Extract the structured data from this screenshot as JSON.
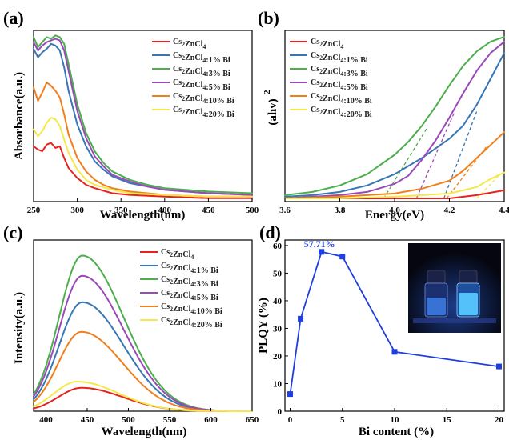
{
  "series_colors": [
    "#e8231e",
    "#3777b5",
    "#4cae4c",
    "#9a4ab8",
    "#f07f1c",
    "#f4e84a"
  ],
  "chart_data": [
    {
      "panel": "(a)",
      "type": "line",
      "xlabel": "Wavelength(nm)",
      "ylabel": "Absorbance(a.u.)",
      "xlim": [
        250,
        500
      ],
      "xticks": [
        250,
        300,
        350,
        400,
        450,
        500
      ],
      "yticks": [],
      "ylim": [
        0,
        1
      ],
      "legend_placement": "top-right",
      "series": [
        {
          "name": "Cs2ZnCl4",
          "x": [
            250,
            255,
            260,
            265,
            270,
            275,
            280,
            285,
            290,
            300,
            310,
            320,
            340,
            360,
            400,
            450,
            500
          ],
          "y": [
            0.33,
            0.31,
            0.3,
            0.34,
            0.35,
            0.32,
            0.33,
            0.26,
            0.2,
            0.14,
            0.1,
            0.08,
            0.05,
            0.04,
            0.03,
            0.02,
            0.02
          ]
        },
        {
          "name": "Cs2ZnCl4:1% Bi",
          "x": [
            250,
            255,
            260,
            265,
            270,
            275,
            280,
            285,
            290,
            295,
            300,
            310,
            320,
            330,
            340,
            360,
            380,
            400,
            450,
            500
          ],
          "y": [
            0.91,
            0.86,
            0.89,
            0.91,
            0.94,
            0.93,
            0.9,
            0.8,
            0.66,
            0.56,
            0.46,
            0.33,
            0.24,
            0.19,
            0.15,
            0.11,
            0.09,
            0.07,
            0.05,
            0.04
          ]
        },
        {
          "name": "Cs2ZnCl4:3% Bi",
          "x": [
            250,
            255,
            260,
            265,
            270,
            275,
            280,
            285,
            290,
            295,
            300,
            310,
            320,
            330,
            340,
            360,
            380,
            400,
            450,
            500
          ],
          "y": [
            0.98,
            0.92,
            0.95,
            0.98,
            0.97,
            0.99,
            0.98,
            0.94,
            0.82,
            0.7,
            0.58,
            0.41,
            0.3,
            0.23,
            0.18,
            0.13,
            0.1,
            0.08,
            0.06,
            0.05
          ]
        },
        {
          "name": "Cs2ZnCl4:5% Bi",
          "x": [
            250,
            255,
            260,
            265,
            270,
            275,
            280,
            285,
            290,
            295,
            300,
            310,
            320,
            330,
            340,
            360,
            380,
            400,
            450,
            500
          ],
          "y": [
            0.95,
            0.9,
            0.93,
            0.95,
            0.96,
            0.97,
            0.96,
            0.9,
            0.78,
            0.66,
            0.54,
            0.38,
            0.27,
            0.21,
            0.16,
            0.12,
            0.09,
            0.07,
            0.05,
            0.04
          ]
        },
        {
          "name": "Cs2ZnCl4:10% Bi",
          "x": [
            250,
            255,
            260,
            265,
            270,
            275,
            280,
            285,
            290,
            300,
            310,
            320,
            330,
            340,
            360,
            380,
            400,
            450,
            500
          ],
          "y": [
            0.68,
            0.6,
            0.65,
            0.71,
            0.69,
            0.66,
            0.62,
            0.52,
            0.4,
            0.26,
            0.18,
            0.13,
            0.1,
            0.08,
            0.06,
            0.05,
            0.04,
            0.03,
            0.03
          ]
        },
        {
          "name": "Cs2ZnCl4:20% Bi",
          "x": [
            250,
            255,
            260,
            265,
            270,
            275,
            280,
            285,
            290,
            300,
            310,
            320,
            340,
            360,
            400,
            450,
            500
          ],
          "y": [
            0.43,
            0.39,
            0.42,
            0.47,
            0.5,
            0.49,
            0.45,
            0.37,
            0.29,
            0.19,
            0.13,
            0.1,
            0.07,
            0.05,
            0.04,
            0.03,
            0.03
          ]
        }
      ]
    },
    {
      "panel": "(b)",
      "type": "line",
      "xlabel": "Energy(eV)",
      "ylabel": "(ahv)",
      "ylabel_sup": "2",
      "xlim": [
        3.6,
        4.4
      ],
      "xticks": [
        "3.6",
        "3.8",
        "4.0",
        "4.2",
        "4.4"
      ],
      "yticks": [],
      "ylim": [
        0,
        1
      ],
      "legend_placement": "top-left",
      "series": [
        {
          "name": "Cs2ZnCl4",
          "x": [
            3.6,
            3.8,
            4.0,
            4.2,
            4.3,
            4.4
          ],
          "y": [
            0.0,
            0.0,
            0.0,
            0.0,
            0.02,
            0.05
          ]
        },
        {
          "name": "Cs2ZnCl4:1% Bi",
          "x": [
            3.6,
            3.7,
            3.8,
            3.9,
            4.0,
            4.1,
            4.15,
            4.2,
            4.25,
            4.3,
            4.35,
            4.4
          ],
          "y": [
            0.01,
            0.02,
            0.04,
            0.08,
            0.15,
            0.25,
            0.31,
            0.37,
            0.45,
            0.58,
            0.74,
            0.9
          ]
        },
        {
          "name": "Cs2ZnCl4:3% Bi",
          "x": [
            3.6,
            3.7,
            3.8,
            3.9,
            4.0,
            4.05,
            4.1,
            4.15,
            4.2,
            4.25,
            4.3,
            4.35,
            4.4
          ],
          "y": [
            0.02,
            0.04,
            0.08,
            0.15,
            0.27,
            0.35,
            0.45,
            0.57,
            0.7,
            0.82,
            0.91,
            0.97,
            1.0
          ]
        },
        {
          "name": "Cs2ZnCl4:5% Bi",
          "x": [
            3.6,
            3.7,
            3.8,
            3.9,
            4.0,
            4.05,
            4.1,
            4.15,
            4.2,
            4.25,
            4.3,
            4.35,
            4.4
          ],
          "y": [
            0.0,
            0.01,
            0.02,
            0.04,
            0.09,
            0.14,
            0.24,
            0.36,
            0.5,
            0.65,
            0.79,
            0.9,
            0.97
          ]
        },
        {
          "name": "Cs2ZnCl4:10% Bi",
          "x": [
            3.6,
            3.8,
            4.0,
            4.1,
            4.2,
            4.25,
            4.3,
            4.35,
            4.4
          ],
          "y": [
            0.0,
            0.01,
            0.03,
            0.06,
            0.11,
            0.17,
            0.25,
            0.33,
            0.41
          ]
        },
        {
          "name": "Cs2ZnCl4:20% Bi",
          "x": [
            3.6,
            3.8,
            4.0,
            4.2,
            4.3,
            4.35,
            4.4
          ],
          "y": [
            0.0,
            0.0,
            0.01,
            0.03,
            0.07,
            0.12,
            0.16
          ]
        }
      ],
      "tangent_lines": [
        {
          "series": "Cs2ZnCl4:3% Bi",
          "from": [
            3.96,
            0.0
          ],
          "to": [
            4.12,
            0.44
          ]
        },
        {
          "series": "Cs2ZnCl4:5% Bi",
          "from": [
            4.08,
            0.0
          ],
          "to": [
            4.22,
            0.54
          ]
        },
        {
          "series": "Cs2ZnCl4:1% Bi",
          "from": [
            4.18,
            0.0
          ],
          "to": [
            4.3,
            0.54
          ]
        },
        {
          "series": "Cs2ZnCl4:10% Bi",
          "from": [
            4.19,
            0.0
          ],
          "to": [
            4.34,
            0.33
          ]
        },
        {
          "series": "Cs2ZnCl4:20% Bi",
          "from": [
            4.3,
            0.0
          ],
          "to": [
            4.38,
            0.14
          ]
        }
      ]
    },
    {
      "panel": "(c)",
      "type": "line",
      "xlabel": "Wavelength(nm)",
      "ylabel": "Intensity(a.u.)",
      "xlim": [
        385,
        650
      ],
      "xticks": [
        400,
        450,
        500,
        550,
        600,
        650
      ],
      "yticks": [],
      "ylim": [
        0,
        1
      ],
      "legend_placement": "top-right",
      "series": [
        {
          "name": "Cs2ZnCl4",
          "peak": 0.15,
          "center": 443
        },
        {
          "name": "Cs2ZnCl4:1% Bi",
          "peak": 0.7,
          "center": 444
        },
        {
          "name": "Cs2ZnCl4:3% Bi",
          "peak": 1.0,
          "center": 444
        },
        {
          "name": "Cs2ZnCl4:5% Bi",
          "peak": 0.87,
          "center": 444
        },
        {
          "name": "Cs2ZnCl4:10% Bi",
          "peak": 0.51,
          "center": 443
        },
        {
          "name": "Cs2ZnCl4:20% Bi",
          "peak": 0.19,
          "center": 438
        }
      ]
    },
    {
      "panel": "(d)",
      "type": "line",
      "xlabel": "Bi content (%)",
      "ylabel": "PLQY (%)",
      "xlim": [
        -0.5,
        20.5
      ],
      "ylim": [
        0,
        62
      ],
      "xticks": [
        0,
        5,
        10,
        15,
        20
      ],
      "yticks": [
        0,
        10,
        20,
        30,
        40,
        50,
        60
      ],
      "series": [
        {
          "name": "",
          "x": [
            0,
            1,
            3,
            5,
            10,
            20
          ],
          "y": [
            6.2,
            33.5,
            57.71,
            56.0,
            21.5,
            16.2
          ],
          "color": "#1f3ee0"
        }
      ],
      "annotation": {
        "text": "57.71%",
        "x": 3,
        "y": 57.71
      },
      "inset": "photo of two vials glowing blue under UV light"
    }
  ]
}
